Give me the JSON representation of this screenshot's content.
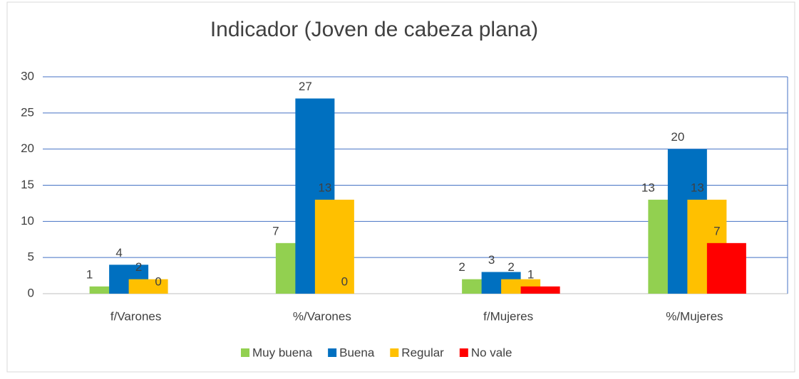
{
  "chart_data": {
    "type": "bar",
    "title": "Indicador (Joven de cabeza plana)",
    "categories": [
      "f/Varones",
      "%/Varones",
      "f/Mujeres",
      "%/Mujeres"
    ],
    "series": [
      {
        "name": "Muy buena",
        "color": "#92d050",
        "values": [
          1,
          7,
          2,
          13
        ]
      },
      {
        "name": "Buena",
        "color": "#0070c0",
        "values": [
          4,
          27,
          3,
          20
        ]
      },
      {
        "name": "Regular",
        "color": "#ffc000",
        "values": [
          2,
          13,
          2,
          13
        ]
      },
      {
        "name": "No vale",
        "color": "#ff0000",
        "values": [
          0,
          0,
          1,
          7
        ]
      }
    ],
    "ylim": [
      0,
      30
    ],
    "yticks": [
      0,
      5,
      10,
      15,
      20,
      25,
      30
    ],
    "grid": true,
    "legend": "bottom"
  }
}
